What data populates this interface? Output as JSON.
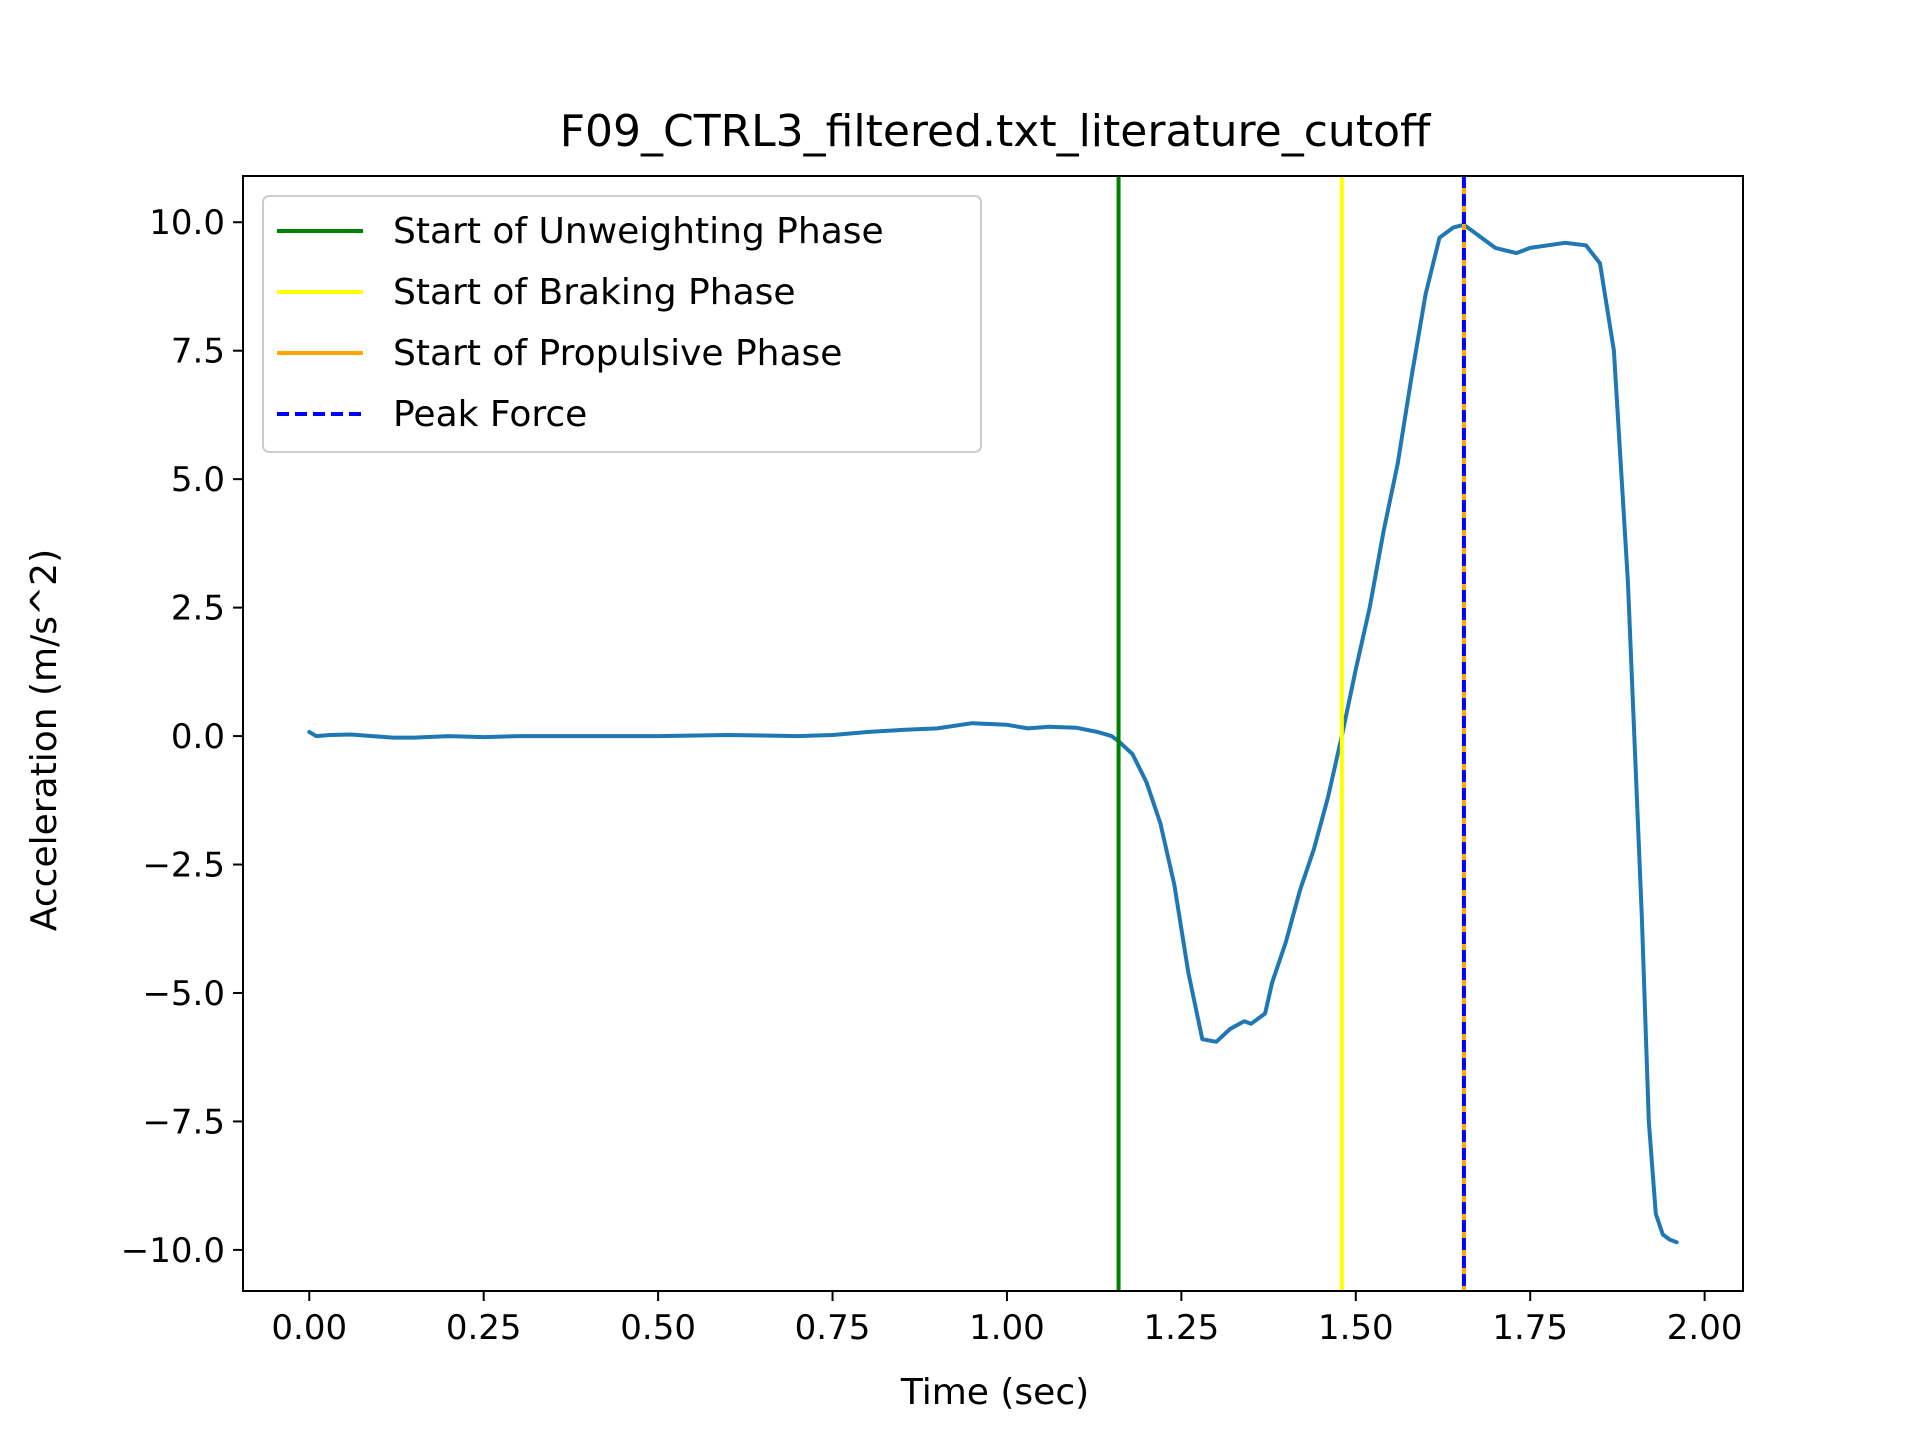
{
  "chart_data": {
    "type": "line",
    "title": "F09_CTRL3_filtered.txt_literature_cutoff",
    "xlabel": "Time (sec)",
    "ylabel": "Acceleration (m/s^2)",
    "xlim": [
      -0.095,
      2.055
    ],
    "ylim": [
      -10.8,
      10.9
    ],
    "xticks": [
      0.0,
      0.25,
      0.5,
      0.75,
      1.0,
      1.25,
      1.5,
      1.75,
      2.0
    ],
    "xtick_labels": [
      "0.00",
      "0.25",
      "0.50",
      "0.75",
      "1.00",
      "1.25",
      "1.50",
      "1.75",
      "2.00"
    ],
    "yticks": [
      10.0,
      7.5,
      5.0,
      2.5,
      0.0,
      -2.5,
      -5.0,
      -7.5,
      -10.0
    ],
    "ytick_labels": [
      "10.0",
      "7.5",
      "5.0",
      "2.5",
      "0.0",
      "−2.5",
      "−5.0",
      "−7.5",
      "−10.0"
    ],
    "grid": false,
    "legend_position": "top-left",
    "series": [
      {
        "color": "#1f77b4",
        "x": [
          0.0,
          0.01,
          0.03,
          0.06,
          0.09,
          0.12,
          0.15,
          0.2,
          0.25,
          0.3,
          0.4,
          0.5,
          0.6,
          0.7,
          0.75,
          0.8,
          0.85,
          0.9,
          0.95,
          1.0,
          1.03,
          1.06,
          1.1,
          1.13,
          1.15,
          1.16,
          1.18,
          1.2,
          1.22,
          1.24,
          1.26,
          1.28,
          1.3,
          1.32,
          1.34,
          1.35,
          1.37,
          1.38,
          1.4,
          1.42,
          1.44,
          1.46,
          1.48,
          1.5,
          1.52,
          1.54,
          1.56,
          1.58,
          1.6,
          1.62,
          1.64,
          1.655,
          1.67,
          1.7,
          1.73,
          1.75,
          1.8,
          1.83,
          1.85,
          1.87,
          1.89,
          1.91,
          1.92,
          1.93,
          1.94,
          1.95,
          1.96
        ],
        "y": [
          0.08,
          0.0,
          0.02,
          0.03,
          0.0,
          -0.03,
          -0.03,
          0.0,
          -0.02,
          0.0,
          0.0,
          0.0,
          0.02,
          0.0,
          0.02,
          0.08,
          0.12,
          0.15,
          0.25,
          0.22,
          0.15,
          0.18,
          0.16,
          0.08,
          0.0,
          -0.1,
          -0.35,
          -0.9,
          -1.7,
          -2.9,
          -4.6,
          -5.9,
          -5.95,
          -5.7,
          -5.55,
          -5.6,
          -5.4,
          -4.8,
          -4.0,
          -3.0,
          -2.2,
          -1.2,
          0.0,
          1.3,
          2.5,
          4.0,
          5.3,
          7.0,
          8.6,
          9.7,
          9.9,
          9.95,
          9.8,
          9.5,
          9.4,
          9.5,
          9.6,
          9.55,
          9.2,
          7.5,
          3.0,
          -3.5,
          -7.5,
          -9.3,
          -9.7,
          -9.8,
          -9.85
        ]
      }
    ],
    "vlines": [
      {
        "name": "Start of Unweighting Phase",
        "x": 1.16,
        "color": "#008000",
        "style": "solid"
      },
      {
        "name": "Start of Braking Phase",
        "x": 1.48,
        "color": "#ffff00",
        "style": "solid"
      },
      {
        "name": "Start of Propulsive Phase",
        "x": 1.655,
        "color": "#ffa500",
        "style": "solid"
      },
      {
        "name": "Peak Force",
        "x": 1.655,
        "color": "#0000ff",
        "style": "dashed"
      }
    ]
  }
}
